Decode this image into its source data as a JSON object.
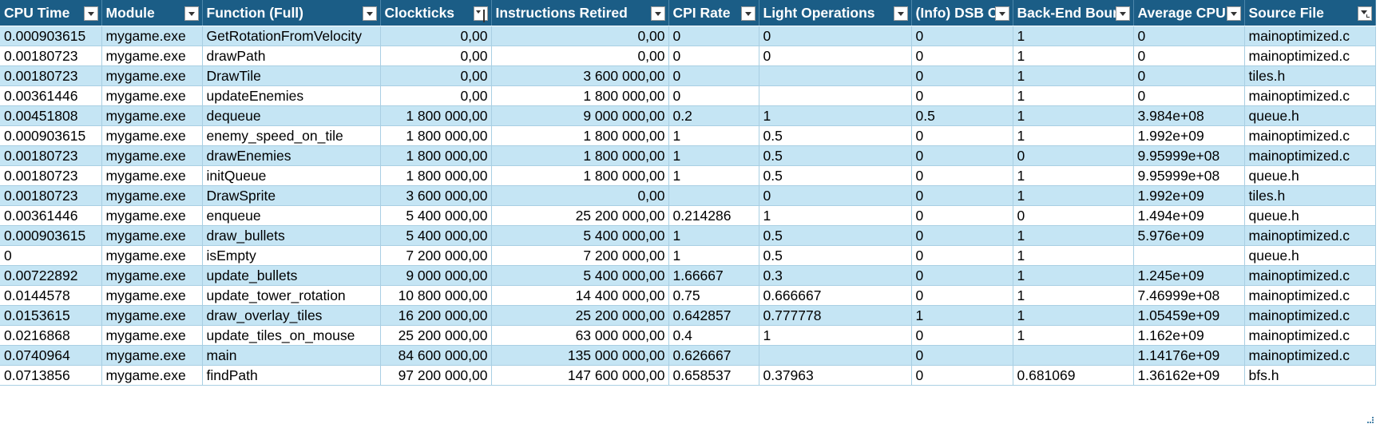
{
  "columns": [
    {
      "label": "CPU Time",
      "filter": "dropdown"
    },
    {
      "label": "Module",
      "filter": "dropdown"
    },
    {
      "label": "Function (Full)",
      "filter": "dropdown"
    },
    {
      "label": "Clockticks",
      "filter": "sorted-ascending"
    },
    {
      "label": "Instructions Retired",
      "filter": "dropdown"
    },
    {
      "label": "CPI Rate",
      "filter": "dropdown"
    },
    {
      "label": "Light Operations",
      "filter": "dropdown"
    },
    {
      "label": "(Info) DSB C",
      "filter": "dropdown"
    },
    {
      "label": "Back-End Boun",
      "filter": "dropdown"
    },
    {
      "label": "Average CPU",
      "filter": "dropdown"
    },
    {
      "label": "Source File",
      "filter": "filtered"
    }
  ],
  "rows": [
    [
      "0.000903615",
      "mygame.exe",
      "GetRotationFromVelocity",
      "0,00",
      "0,00",
      "0",
      "0",
      "0",
      "1",
      "0",
      "mainoptimized.c"
    ],
    [
      "0.00180723",
      "mygame.exe",
      "drawPath",
      "0,00",
      "0,00",
      "0",
      "0",
      "0",
      "1",
      "0",
      "mainoptimized.c"
    ],
    [
      "0.00180723",
      "mygame.exe",
      "DrawTile",
      "0,00",
      "3 600 000,00",
      "0",
      "",
      "0",
      "1",
      "0",
      "tiles.h"
    ],
    [
      "0.00361446",
      "mygame.exe",
      "updateEnemies",
      "0,00",
      "1 800 000,00",
      "0",
      "",
      "0",
      "1",
      "0",
      "mainoptimized.c"
    ],
    [
      "0.00451808",
      "mygame.exe",
      "dequeue",
      "1 800 000,00",
      "9 000 000,00",
      "0.2",
      "1",
      "0.5",
      "1",
      "3.984e+08",
      "queue.h"
    ],
    [
      "0.000903615",
      "mygame.exe",
      "enemy_speed_on_tile",
      "1 800 000,00",
      "1 800 000,00",
      "1",
      "0.5",
      "0",
      "1",
      "1.992e+09",
      "mainoptimized.c"
    ],
    [
      "0.00180723",
      "mygame.exe",
      "drawEnemies",
      "1 800 000,00",
      "1 800 000,00",
      "1",
      "0.5",
      "0",
      "0",
      "9.95999e+08",
      "mainoptimized.c"
    ],
    [
      "0.00180723",
      "mygame.exe",
      "initQueue",
      "1 800 000,00",
      "1 800 000,00",
      "1",
      "0.5",
      "0",
      "1",
      "9.95999e+08",
      "queue.h"
    ],
    [
      "0.00180723",
      "mygame.exe",
      "DrawSprite",
      "3 600 000,00",
      "0,00",
      "",
      "0",
      "0",
      "1",
      "1.992e+09",
      "tiles.h"
    ],
    [
      "0.00361446",
      "mygame.exe",
      "enqueue",
      "5 400 000,00",
      "25 200 000,00",
      "0.214286",
      "1",
      "0",
      "0",
      "1.494e+09",
      "queue.h"
    ],
    [
      "0.000903615",
      "mygame.exe",
      "draw_bullets",
      "5 400 000,00",
      "5 400 000,00",
      "1",
      "0.5",
      "0",
      "1",
      "5.976e+09",
      "mainoptimized.c"
    ],
    [
      "0",
      "mygame.exe",
      "isEmpty",
      "7 200 000,00",
      "7 200 000,00",
      "1",
      "0.5",
      "0",
      "1",
      "",
      "queue.h"
    ],
    [
      "0.00722892",
      "mygame.exe",
      "update_bullets",
      "9 000 000,00",
      "5 400 000,00",
      "1.66667",
      "0.3",
      "0",
      "1",
      "1.245e+09",
      "mainoptimized.c"
    ],
    [
      "0.0144578",
      "mygame.exe",
      "update_tower_rotation",
      "10 800 000,00",
      "14 400 000,00",
      "0.75",
      "0.666667",
      "0",
      "1",
      "7.46999e+08",
      "mainoptimized.c"
    ],
    [
      "0.0153615",
      "mygame.exe",
      "draw_overlay_tiles",
      "16 200 000,00",
      "25 200 000,00",
      "0.642857",
      "0.777778",
      "1",
      "1",
      "1.05459e+09",
      "mainoptimized.c"
    ],
    [
      "0.0216868",
      "mygame.exe",
      "update_tiles_on_mouse",
      "25 200 000,00",
      "63 000 000,00",
      "0.4",
      "1",
      "0",
      "1",
      "1.162e+09",
      "mainoptimized.c"
    ],
    [
      "0.0740964",
      "mygame.exe",
      "main",
      "84 600 000,00",
      "135 000 000,00",
      "0.626667",
      "",
      "0",
      "",
      "1.14176e+09",
      "mainoptimized.c"
    ],
    [
      "0.0713856",
      "mygame.exe",
      "findPath",
      "97 200 000,00",
      "147 600 000,00",
      "0.658537",
      "0.37963",
      "0",
      "0.681069",
      "1.36162e+09",
      "bfs.h"
    ]
  ],
  "numeric_columns": [
    3,
    4
  ]
}
